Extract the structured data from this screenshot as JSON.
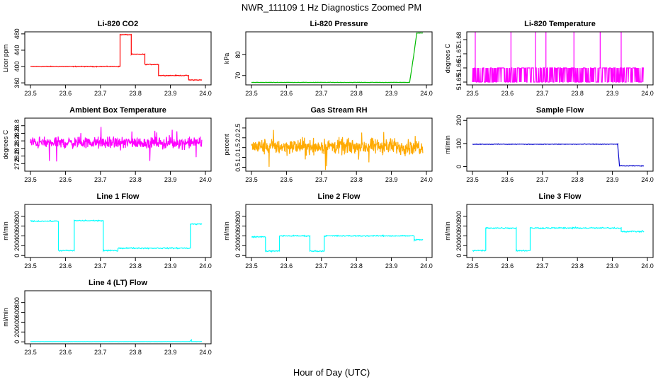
{
  "figure": {
    "title": "NWR_111109  1 Hz Diagnostics Zoomed PM",
    "xlabel": "Hour of Day (UTC)"
  },
  "chart_data": [
    {
      "type": "line",
      "title": "Li-820 CO2",
      "ylabel": "Licor ppm",
      "xlim": [
        23.5,
        24.0
      ],
      "ylim": [
        355,
        485
      ],
      "xticks": [
        "23.5",
        "23.6",
        "23.7",
        "23.8",
        "23.9",
        "24.0"
      ],
      "yticks": [
        "360",
        "400",
        "440",
        "480"
      ],
      "color": "#ff0000",
      "noise": 0.8,
      "segments": [
        [
          23.5,
          23.756,
          400
        ],
        [
          23.756,
          23.788,
          478
        ],
        [
          23.788,
          23.827,
          430
        ],
        [
          23.827,
          23.866,
          405
        ],
        [
          23.866,
          23.952,
          378
        ],
        [
          23.952,
          23.99,
          367
        ]
      ]
    },
    {
      "type": "line",
      "title": "Li-820 Pressure",
      "ylabel": "kPa",
      "xlim": [
        23.5,
        24.0
      ],
      "ylim": [
        65.5,
        91
      ],
      "xticks": [
        "23.5",
        "23.6",
        "23.7",
        "23.8",
        "23.9",
        "24.0"
      ],
      "yticks": [
        "70",
        "80"
      ],
      "color": "#00bb00",
      "noise": 0.08,
      "segments": [
        [
          23.5,
          23.952,
          66.7
        ],
        [
          23.952,
          23.964,
          66.7,
          80
        ],
        [
          23.964,
          23.972,
          80,
          90
        ],
        [
          23.972,
          23.99,
          90.4
        ]
      ]
    },
    {
      "type": "line",
      "title": "Li-820 Temperature",
      "ylabel": "degrees C",
      "xlim": [
        23.5,
        24.0
      ],
      "ylim": [
        51.648,
        51.6855
      ],
      "xticks": [
        "23.5",
        "23.6",
        "23.7",
        "23.8",
        "23.9",
        "24.0"
      ],
      "yticks": [
        "51.65",
        "51.66",
        "51.67",
        "51.68"
      ],
      "color": "#ff00ff",
      "mode": "band",
      "low": 51.65,
      "high": 51.66,
      "noise": 0,
      "spikes": [
        23.508,
        23.61,
        23.68,
        23.71,
        23.79,
        23.865,
        23.925
      ],
      "spike_top": 51.6855
    },
    {
      "type": "line",
      "title": "Ambient Box Temperature",
      "ylabel": "degrees C",
      "xlim": [
        23.5,
        24.0
      ],
      "ylim": [
        27.6,
        29.0
      ],
      "xticks": [
        "23.5",
        "23.6",
        "23.7",
        "23.8",
        "23.9",
        "24.0"
      ],
      "yticks": [
        "27.8",
        "28.0",
        "28.2",
        "28.4",
        "28.6",
        "28.8"
      ],
      "color": "#ff00ff",
      "mode": "noise",
      "center": 28.35,
      "noise": 0.13,
      "outliers": 0.5,
      "segments": [
        [
          23.5,
          23.99,
          28.35
        ]
      ]
    },
    {
      "type": "line",
      "title": "Gas Stream RH",
      "ylabel": "percent",
      "xlim": [
        23.5,
        24.0
      ],
      "ylim": [
        0.3,
        3.0
      ],
      "xticks": [
        "23.5",
        "23.6",
        "23.7",
        "23.8",
        "23.9",
        "24.0"
      ],
      "yticks": [
        "0.5",
        "1.0",
        "1.5",
        "2.0",
        "2.5"
      ],
      "color": "#ffaa00",
      "mode": "noise",
      "center": 1.55,
      "noise": 0.35,
      "outliers": 1.2,
      "segments": [
        [
          23.5,
          23.99,
          1.55
        ]
      ]
    },
    {
      "type": "line",
      "title": "Sample Flow",
      "ylabel": "ml/min",
      "xlim": [
        23.5,
        24.0
      ],
      "ylim": [
        -20,
        210
      ],
      "xticks": [
        "23.5",
        "23.6",
        "23.7",
        "23.8",
        "23.9",
        "24.0"
      ],
      "yticks": [
        "0",
        "100",
        "200"
      ],
      "color": "#0000cc",
      "noise": 1.2,
      "segments": [
        [
          23.5,
          23.915,
          97
        ],
        [
          23.915,
          23.92,
          97,
          5
        ],
        [
          23.92,
          23.99,
          3
        ]
      ]
    },
    {
      "type": "line",
      "title": "Line 1 Flow",
      "ylabel": "ml/min",
      "xlim": [
        23.5,
        24.0
      ],
      "ylim": [
        -40,
        1040
      ],
      "xticks": [
        "23.5",
        "23.6",
        "23.7",
        "23.8",
        "23.9",
        "24.0"
      ],
      "yticks": [
        "0",
        "200",
        "400",
        "600",
        "800"
      ],
      "color": "#00ffff",
      "noise": 10,
      "segments": [
        [
          23.5,
          23.58,
          700
        ],
        [
          23.58,
          23.625,
          100
        ],
        [
          23.625,
          23.708,
          710
        ],
        [
          23.708,
          23.75,
          100
        ],
        [
          23.75,
          23.957,
          150
        ],
        [
          23.957,
          23.99,
          640
        ]
      ]
    },
    {
      "type": "line",
      "title": "Line 2 Flow",
      "ylabel": "ml/min",
      "xlim": [
        23.5,
        24.0
      ],
      "ylim": [
        -40,
        1040
      ],
      "xticks": [
        "23.5",
        "23.6",
        "23.7",
        "23.8",
        "23.9",
        "24.0"
      ],
      "yticks": [
        "0",
        "200",
        "400",
        "600",
        "800"
      ],
      "color": "#00ffff",
      "noise": 10,
      "segments": [
        [
          23.5,
          23.54,
          380
        ],
        [
          23.54,
          23.58,
          90
        ],
        [
          23.58,
          23.667,
          400
        ],
        [
          23.667,
          23.708,
          90
        ],
        [
          23.708,
          23.965,
          400
        ],
        [
          23.965,
          23.99,
          320
        ]
      ]
    },
    {
      "type": "line",
      "title": "Line 3 Flow",
      "ylabel": "ml/min",
      "xlim": [
        23.5,
        24.0
      ],
      "ylim": [
        -40,
        1040
      ],
      "xticks": [
        "23.5",
        "23.6",
        "23.7",
        "23.8",
        "23.9",
        "24.0"
      ],
      "yticks": [
        "0",
        "200",
        "400",
        "600",
        "800"
      ],
      "color": "#00ffff",
      "noise": 12,
      "segments": [
        [
          23.5,
          23.538,
          100
        ],
        [
          23.538,
          23.625,
          560
        ],
        [
          23.625,
          23.665,
          100
        ],
        [
          23.665,
          23.925,
          560
        ],
        [
          23.925,
          23.99,
          490
        ]
      ]
    },
    {
      "type": "line",
      "title": "Line 4 (LT) Flow",
      "ylabel": "ml/min",
      "xlim": [
        23.5,
        24.0
      ],
      "ylim": [
        -40,
        1040
      ],
      "xticks": [
        "23.5",
        "23.6",
        "23.7",
        "23.8",
        "23.9",
        "24.0"
      ],
      "yticks": [
        "0",
        "200",
        "400",
        "600",
        "800"
      ],
      "color": "#00ffff",
      "noise": 2,
      "segments": [
        [
          23.5,
          23.955,
          5
        ],
        [
          23.955,
          23.96,
          5,
          40
        ],
        [
          23.96,
          23.99,
          5
        ]
      ]
    }
  ]
}
